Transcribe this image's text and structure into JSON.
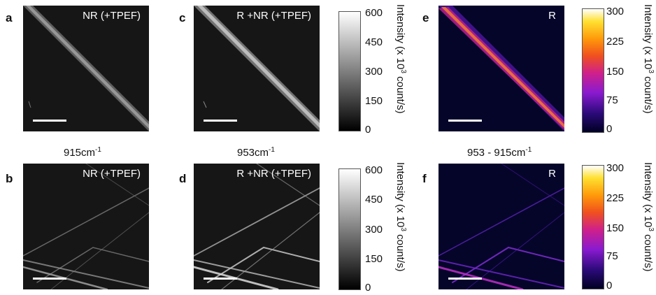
{
  "panels": [
    {
      "label": "a",
      "title": "NR (+TPEF)"
    },
    {
      "label": "c",
      "title": "R +NR (+TPEF)"
    },
    {
      "label": "e",
      "title": "R"
    },
    {
      "label": "b",
      "title": "NR (+TPEF)"
    },
    {
      "label": "d",
      "title": "R +NR (+TPEF)"
    },
    {
      "label": "f",
      "title": "R"
    }
  ],
  "wavenumber_labels": [
    {
      "text": "915cm",
      "sup": "-1"
    },
    {
      "text": "953cm",
      "sup": "-1"
    },
    {
      "text": "953 - 915cm",
      "sup": "-1"
    }
  ],
  "colorbar_gray": {
    "ticks": [
      "600",
      "450",
      "300",
      "150",
      "0"
    ],
    "title_pre": "Intensity (x 10",
    "title_sup": "3",
    "title_post": " count/s)",
    "colormap": "gray"
  },
  "colorbar_fire": {
    "ticks": [
      "300",
      "225",
      "150",
      "75",
      "0"
    ],
    "title_pre": "Intensity (x 10",
    "title_sup": "3",
    "title_post": " count/s)",
    "colormap": "fire"
  }
}
